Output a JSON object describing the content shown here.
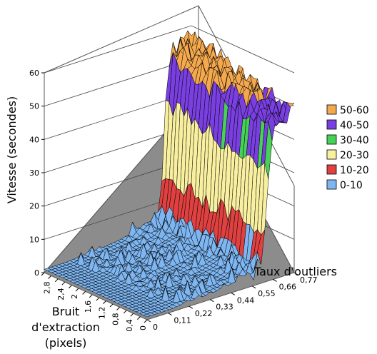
{
  "chart_data": {
    "type": "surface",
    "title": "",
    "zlabel": "Vitesse (secondes)",
    "xlabel": "Taux d'outliers",
    "ylabel_lines": [
      "Bruit",
      "d'extraction",
      "(pixels)"
    ],
    "z_ticks": [
      "0",
      "10",
      "20",
      "30",
      "40",
      "50",
      "60"
    ],
    "zlim": [
      0,
      60
    ],
    "outlier_ticks": [
      "0",
      "0,11",
      "0,22",
      "0,33",
      "0,44",
      "0,55",
      "0,66",
      "0,77"
    ],
    "outlier_range": [
      0,
      0.77
    ],
    "noise_ticks": [
      "0",
      "0,4",
      "0,8",
      "1,2",
      "1,6",
      "2",
      "2,4",
      "2,8"
    ],
    "noise_range": [
      0,
      3.0
    ],
    "outlier_profile": {
      "rates": [
        0,
        0.11,
        0.22,
        0.33,
        0.44,
        0.55,
        0.6,
        0.62,
        0.64,
        0.66,
        0.7,
        0.77
      ],
      "speed": [
        1,
        1,
        1.5,
        2,
        3,
        5,
        8,
        20,
        45,
        55,
        56,
        57
      ]
    },
    "legend": [
      {
        "label": "50-60",
        "color": "#F5A94E"
      },
      {
        "label": "40-50",
        "color": "#7A3FE0"
      },
      {
        "label": "30-40",
        "color": "#47D157"
      },
      {
        "label": "20-30",
        "color": "#F8F0A0"
      },
      {
        "label": "10-20",
        "color": "#DF4040"
      },
      {
        "label": "0-10",
        "color": "#7EB6F2"
      }
    ],
    "grid": true,
    "legend_position": "right"
  }
}
